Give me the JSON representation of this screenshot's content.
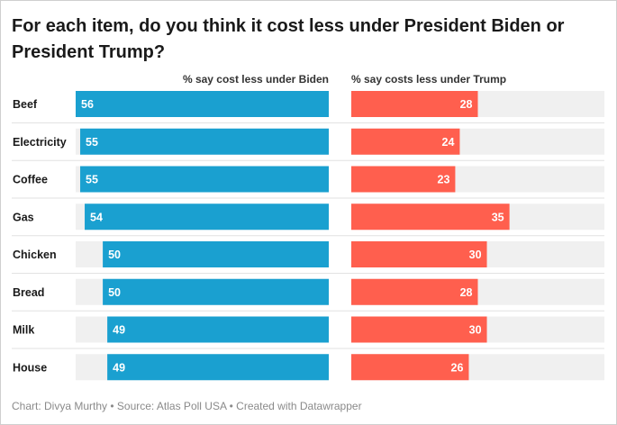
{
  "title": "For each item, do you think it cost less under President Biden or President Trump?",
  "footer": "Chart: Divya Murthy • Source: Atlas Poll USA • Created with Datawrapper",
  "colors": {
    "biden": "#1aa0d0",
    "trump": "#ff5f4e",
    "track": "#f0f0f0"
  },
  "chart_data": {
    "type": "bar",
    "title": "For each item, do you think it cost less under President Biden or President Trump?",
    "categories": [
      "Beef",
      "Electricity",
      "Coffee",
      "Gas",
      "Chicken",
      "Bread",
      "Milk",
      "House"
    ],
    "series": [
      {
        "name": "% say cost less under Biden",
        "values": [
          56,
          55,
          55,
          54,
          50,
          50,
          49,
          49
        ]
      },
      {
        "name": "% say costs less under Trump",
        "values": [
          28,
          24,
          23,
          35,
          30,
          28,
          30,
          26
        ]
      }
    ],
    "xlim": [
      0,
      100
    ],
    "grid": false,
    "legend": "column headers above each bar set"
  }
}
